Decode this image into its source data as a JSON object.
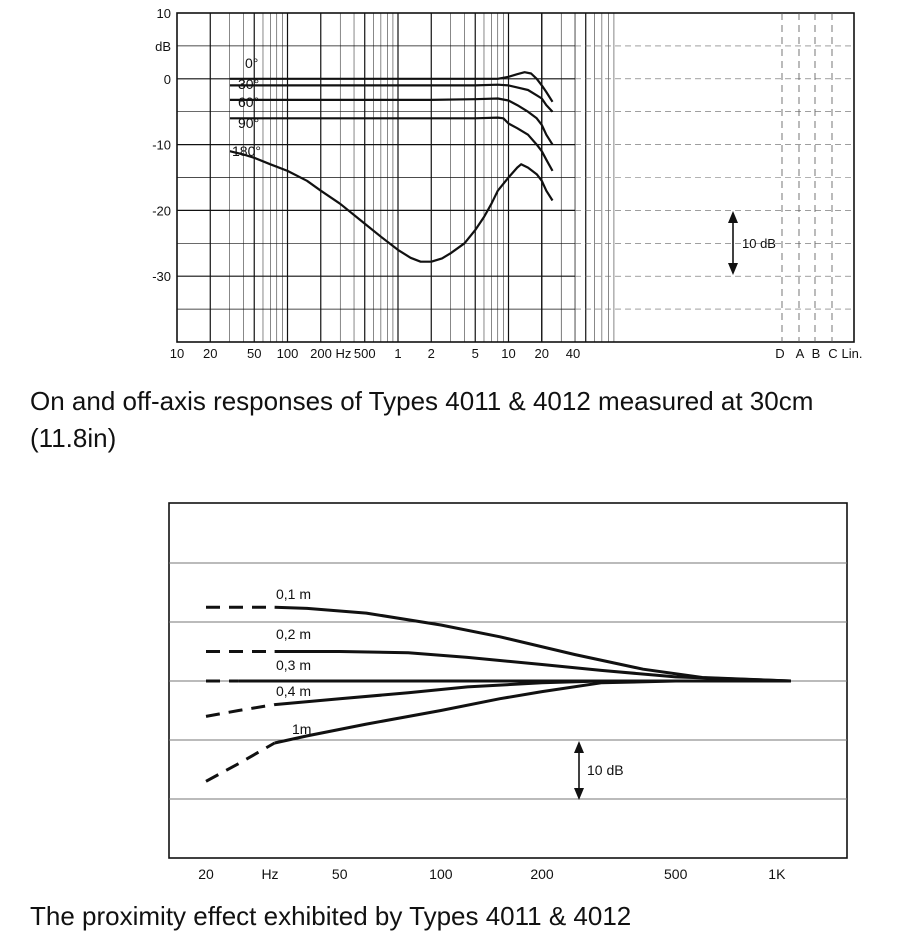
{
  "captions": {
    "top": "On and off-axis responses of Types 4011 & 4012 measured at 30cm (11.8in)",
    "bottom": "The proximity effect exhibited by Types 4011 & 4012"
  },
  "chart_data": [
    {
      "type": "line",
      "title": "",
      "xlabel": "Hz",
      "ylabel": "dB",
      "x_scale": "log",
      "xlim": [
        10,
        40000
      ],
      "ylim": [
        -40,
        10
      ],
      "grid": true,
      "y_ticks": [
        "10",
        "dB",
        "0",
        "-10",
        "-20",
        "-30"
      ],
      "x_ticks": [
        "10",
        "20",
        "50",
        "100",
        "200 Hz",
        "500",
        "1",
        "2",
        "5",
        "10",
        "20",
        "40"
      ],
      "weighting_labels": [
        "D",
        "A",
        "B",
        "C",
        "Lin."
      ],
      "scale_marker": "10 dB",
      "series": [
        {
          "name": "0°",
          "points": [
            [
              30,
              0
            ],
            [
              100,
              0
            ],
            [
              200,
              0
            ],
            [
              500,
              0
            ],
            [
              1000,
              0
            ],
            [
              2000,
              0
            ],
            [
              5000,
              0
            ],
            [
              8000,
              0
            ],
            [
              10000,
              0.3
            ],
            [
              12000,
              0.7
            ],
            [
              14000,
              1
            ],
            [
              16000,
              0.8
            ],
            [
              18000,
              0
            ],
            [
              20000,
              -1
            ],
            [
              22000,
              -2
            ],
            [
              25000,
              -3.5
            ]
          ]
        },
        {
          "name": "30°",
          "points": [
            [
              30,
              -1
            ],
            [
              100,
              -1
            ],
            [
              500,
              -1
            ],
            [
              1000,
              -1
            ],
            [
              2000,
              -1
            ],
            [
              5000,
              -1
            ],
            [
              8000,
              -0.9
            ],
            [
              10000,
              -1
            ],
            [
              12000,
              -1.3
            ],
            [
              15000,
              -1.7
            ],
            [
              18000,
              -2.5
            ],
            [
              20000,
              -3
            ],
            [
              22000,
              -4
            ],
            [
              25000,
              -5
            ]
          ]
        },
        {
          "name": "60°",
          "points": [
            [
              30,
              -3.2
            ],
            [
              100,
              -3.2
            ],
            [
              500,
              -3.2
            ],
            [
              1000,
              -3.2
            ],
            [
              2000,
              -3.2
            ],
            [
              5000,
              -3.1
            ],
            [
              8000,
              -3
            ],
            [
              10000,
              -3.3
            ],
            [
              12000,
              -4
            ],
            [
              15000,
              -5
            ],
            [
              18000,
              -6
            ],
            [
              20000,
              -7
            ],
            [
              22000,
              -8.5
            ],
            [
              25000,
              -10
            ]
          ]
        },
        {
          "name": "90°",
          "points": [
            [
              30,
              -6
            ],
            [
              100,
              -6
            ],
            [
              500,
              -6
            ],
            [
              1000,
              -6
            ],
            [
              2000,
              -6
            ],
            [
              5000,
              -6
            ],
            [
              8000,
              -5.9
            ],
            [
              9000,
              -6
            ],
            [
              10000,
              -6.8
            ],
            [
              12000,
              -7.5
            ],
            [
              15000,
              -8.5
            ],
            [
              18000,
              -10
            ],
            [
              20000,
              -11
            ],
            [
              22000,
              -12.3
            ],
            [
              25000,
              -14
            ]
          ]
        },
        {
          "name": "180°",
          "points": [
            [
              30,
              -11
            ],
            [
              40,
              -11.5
            ],
            [
              50,
              -12
            ],
            [
              70,
              -13
            ],
            [
              100,
              -14
            ],
            [
              150,
              -15.5
            ],
            [
              200,
              -17
            ],
            [
              300,
              -19
            ],
            [
              500,
              -22
            ],
            [
              700,
              -24
            ],
            [
              1000,
              -26
            ],
            [
              1300,
              -27.2
            ],
            [
              1600,
              -27.8
            ],
            [
              2000,
              -27.8
            ],
            [
              2500,
              -27.3
            ],
            [
              3000,
              -26.5
            ],
            [
              4000,
              -25
            ],
            [
              5000,
              -23
            ],
            [
              6000,
              -21
            ],
            [
              7000,
              -19
            ],
            [
              8000,
              -17
            ],
            [
              10000,
              -15
            ],
            [
              12000,
              -13.5
            ],
            [
              13000,
              -13
            ],
            [
              15000,
              -13.5
            ],
            [
              18000,
              -14.5
            ],
            [
              20000,
              -15.5
            ],
            [
              22000,
              -17
            ],
            [
              25000,
              -18.5
            ]
          ]
        }
      ]
    },
    {
      "type": "line",
      "title": "",
      "xlabel": "Hz",
      "x_scale": "log",
      "xlim": [
        18,
        1400
      ],
      "ylim": [
        -20,
        20
      ],
      "grid": true,
      "x_ticks": [
        "20",
        "50",
        "100",
        "200",
        "500",
        "1K"
      ],
      "scale_marker": "10 dB",
      "series": [
        {
          "name": "0,1 m",
          "dashed_below_hz": 32,
          "points": [
            [
              20,
              12.5
            ],
            [
              25,
              12.5
            ],
            [
              32,
              12.5
            ],
            [
              40,
              12.3
            ],
            [
              60,
              11.5
            ],
            [
              100,
              9.5
            ],
            [
              150,
              7.5
            ],
            [
              250,
              4.5
            ],
            [
              400,
              2
            ],
            [
              600,
              0.6
            ],
            [
              1100,
              0
            ]
          ]
        },
        {
          "name": "0,2 m",
          "dashed_below_hz": 32,
          "points": [
            [
              20,
              5
            ],
            [
              25,
              5
            ],
            [
              32,
              5
            ],
            [
              40,
              5
            ],
            [
              50,
              5
            ],
            [
              80,
              4.8
            ],
            [
              120,
              4
            ],
            [
              200,
              2.8
            ],
            [
              300,
              1.8
            ],
            [
              500,
              0.7
            ],
            [
              1100,
              0
            ]
          ]
        },
        {
          "name": "0,3 m",
          "dashed_below_hz": 25,
          "points": [
            [
              20,
              0
            ],
            [
              25,
              0
            ],
            [
              32,
              0
            ],
            [
              50,
              0
            ],
            [
              100,
              0
            ],
            [
              200,
              0
            ],
            [
              500,
              0
            ],
            [
              1100,
              0
            ]
          ]
        },
        {
          "name": "0,4 m",
          "dashed_below_hz": 32,
          "points": [
            [
              20,
              -6
            ],
            [
              25,
              -5
            ],
            [
              32,
              -4
            ],
            [
              50,
              -3
            ],
            [
              80,
              -2
            ],
            [
              120,
              -1
            ],
            [
              200,
              -0.3
            ],
            [
              300,
              0
            ],
            [
              500,
              0
            ],
            [
              1100,
              0
            ]
          ]
        },
        {
          "name": "1m",
          "dashed_below_hz": 32,
          "points": [
            [
              20,
              -17
            ],
            [
              25,
              -14
            ],
            [
              32,
              -10.5
            ],
            [
              40,
              -9.3
            ],
            [
              60,
              -7.3
            ],
            [
              100,
              -5
            ],
            [
              150,
              -3
            ],
            [
              200,
              -1.8
            ],
            [
              300,
              -0.3
            ],
            [
              500,
              0
            ],
            [
              1100,
              0
            ]
          ]
        }
      ]
    }
  ]
}
